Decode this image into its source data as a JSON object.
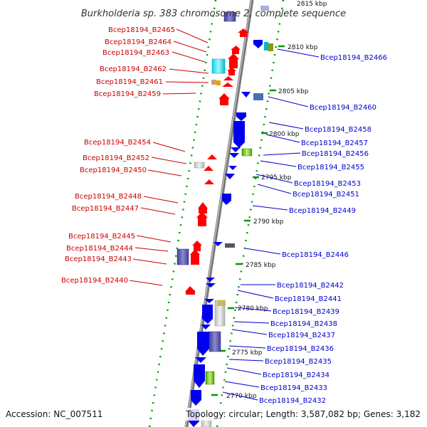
{
  "title": "Burkholderia sp. 383 chromosome 2, complete sequence",
  "footer": {
    "accession": "Accession: NC_007511",
    "topology": "Topology: circular; Length: 3,587,082 bp; Genes: 3,182"
  },
  "colors": {
    "forward": "#ff0000",
    "reverse": "#0000ee",
    "backbone": "#888888",
    "tick": "#009900",
    "left_label": "#cc0000",
    "right_label": "#0000cc"
  },
  "kbp_marks": [
    "2815 kbp",
    "2810 kbp",
    "2805 kbp",
    "2800 kbp",
    "2795 kbp",
    "2790 kbp",
    "2785 kbp",
    "2780 kbp",
    "2775 kbp",
    "2770 kbp"
  ],
  "left_labels": [
    "Bcep18194_B2465",
    "Bcep18194_B2464",
    "Bcep18194_B2463",
    "Bcep18194_B2462",
    "Bcep18194_B2461",
    "Bcep18194_B2459",
    "Bcep18194_B2454",
    "Bcep18194_B2452",
    "Bcep18194_B2450",
    "Bcep18194_B2448",
    "Bcep18194_B2447",
    "Bcep18194_B2445",
    "Bcep18194_B2444",
    "Bcep18194_B2443",
    "Bcep18194_B2440"
  ],
  "right_labels": [
    "Bcep18194_B2466",
    "Bcep18194_B2460",
    "Bcep18194_B2458",
    "Bcep18194_B2457",
    "Bcep18194_B2456",
    "Bcep18194_B2455",
    "Bcep18194_B2453",
    "Bcep18194_B2451",
    "Bcep18194_B2449",
    "Bcep18194_B2446",
    "Bcep18194_B2442",
    "Bcep18194_B2441",
    "Bcep18194_B2439",
    "Bcep18194_B2438",
    "Bcep18194_B2437",
    "Bcep18194_B2436",
    "Bcep18194_B2435",
    "Bcep18194_B2434",
    "Bcep18194_B2433",
    "Bcep18194_B2432"
  ]
}
